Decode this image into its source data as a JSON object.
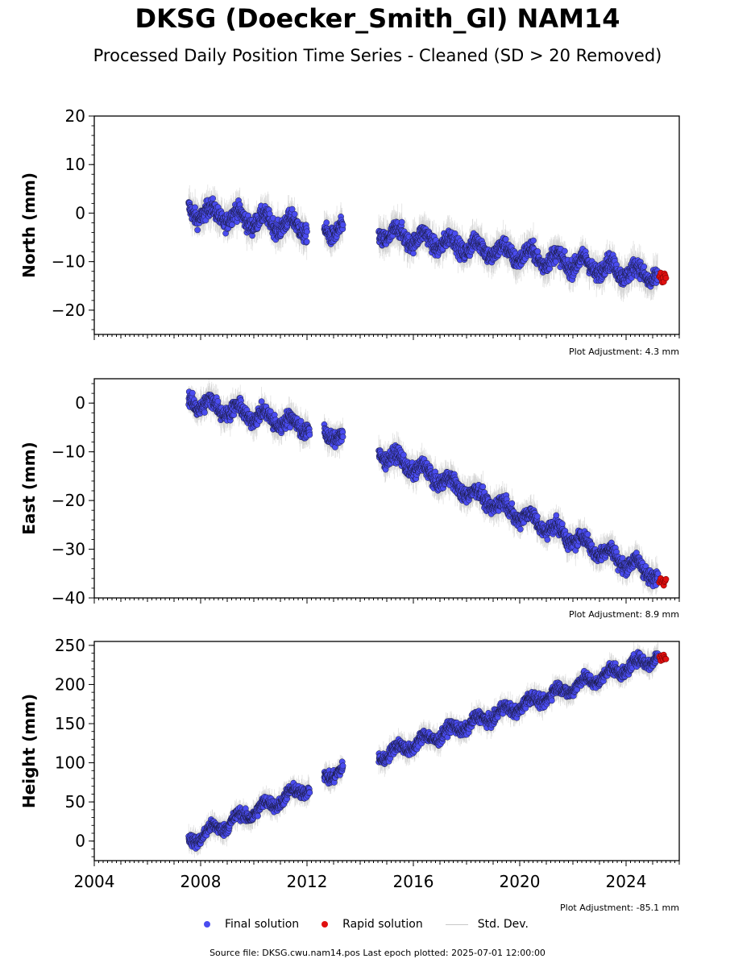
{
  "title": "DKSG (Doecker_Smith_Gl) NAM14",
  "subtitle": "Processed Daily Position Time Series - Cleaned (SD > 20 Removed)",
  "footer": "Source file: DKSG.cwu.nam14.pos  Last epoch plotted: 2025-07-01 12:00:00",
  "colors": {
    "final": "#4a4cf0",
    "rapid": "#e01010",
    "std_dev": "#c8c8c8",
    "marker_edge": "#1a1a40"
  },
  "legend": {
    "final": "Final solution",
    "rapid": "Rapid solution",
    "std": "Std. Dev."
  },
  "chart_data": [
    {
      "type": "scatter",
      "ylabel": "North (mm)",
      "xlim": [
        2004.0,
        2026.0
      ],
      "ylim": [
        -25,
        20
      ],
      "xticks": [
        2004,
        2008,
        2012,
        2016,
        2020,
        2024
      ],
      "yticks": [
        20,
        10,
        0,
        -10,
        -20
      ],
      "ytick_labels": [
        "20",
        "10",
        "0",
        "−10",
        "−20"
      ],
      "adjustment": "Plot Adjustment: 4.3 mm",
      "series": [
        {
          "name": "Final solution",
          "segments": [
            [
              2007.55,
              2012.0,
              0.5,
              -3.0
            ],
            [
              2012.65,
              2013.35,
              -3.0,
              -4.0
            ],
            [
              2014.7,
              2025.2,
              -4.0,
              -13.0
            ]
          ],
          "scatter": 1.6
        },
        {
          "name": "Rapid solution",
          "range": [
            2025.25,
            2025.5
          ],
          "value": -13.2
        }
      ]
    },
    {
      "type": "scatter",
      "ylabel": "East (mm)",
      "xlim": [
        2004.0,
        2026.0
      ],
      "ylim": [
        -40,
        5
      ],
      "xticks": [
        2004,
        2008,
        2012,
        2016,
        2020,
        2024
      ],
      "yticks": [
        0,
        -10,
        -20,
        -30,
        -40
      ],
      "ytick_labels": [
        "0",
        "−10",
        "−20",
        "−30",
        "−40"
      ],
      "adjustment": "Plot Adjustment: 8.9 mm",
      "series": [
        {
          "name": "Final solution",
          "segments": [
            [
              2007.55,
              2012.1,
              0.5,
              -5.0
            ],
            [
              2012.65,
              2013.35,
              -5.5,
              -7.5
            ],
            [
              2014.7,
              2025.2,
              -10.0,
              -35.5
            ]
          ],
          "scatter": 1.4
        },
        {
          "name": "Rapid solution",
          "range": [
            2025.25,
            2025.5
          ],
          "value": -36.5
        }
      ]
    },
    {
      "type": "scatter",
      "ylabel": "Height (mm)",
      "xlim": [
        2004.0,
        2026.0
      ],
      "ylim": [
        -25,
        255
      ],
      "xticks": [
        2004,
        2008,
        2012,
        2016,
        2020,
        2024
      ],
      "xtick_labels": [
        "2004",
        "2008",
        "2012",
        "2016",
        "2020",
        "2024"
      ],
      "yticks": [
        250,
        200,
        150,
        100,
        50,
        0
      ],
      "ytick_labels": [
        "250",
        "200",
        "150",
        "100",
        "50",
        "0"
      ],
      "adjustment": "Plot Adjustment: -85.1 mm",
      "series": [
        {
          "name": "Final solution",
          "segments": [
            [
              2007.55,
              2012.1,
              0.0,
              70.0
            ],
            [
              2012.65,
              2013.35,
              85.0,
              88.0
            ],
            [
              2014.7,
              2025.2,
              108.0,
              236.0
            ]
          ],
          "scatter": 7.0
        },
        {
          "name": "Rapid solution",
          "range": [
            2025.25,
            2025.5
          ],
          "value": 234.0
        }
      ]
    }
  ]
}
